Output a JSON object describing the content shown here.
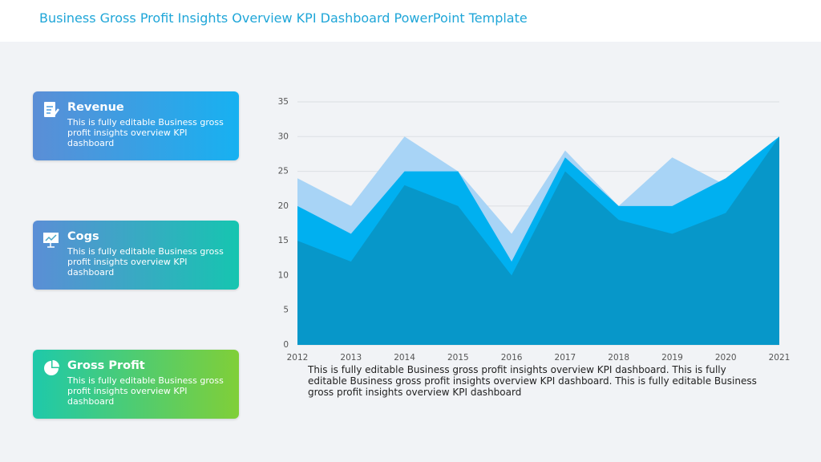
{
  "header": {
    "title": "Business Gross Profit Insights Overview KPI Dashboard PowerPoint Template"
  },
  "cards": [
    {
      "title": "Revenue",
      "text": "This is fully editable Business gross profit insights overview KPI dashboard"
    },
    {
      "title": "Cogs",
      "text": "This is fully editable Business gross profit insights overview KPI dashboard"
    },
    {
      "title": "Gross Profit",
      "text": "This is fully editable Business gross profit insights overview KPI dashboard"
    }
  ],
  "caption": "This is fully editable Business gross profit insights overview KPI dashboard. This is fully editable Business gross profit insights overview KPI dashboard. This is fully editable Business gross profit insights overview KPI dashboard",
  "chart_data": {
    "type": "area",
    "x": [
      2012,
      2013,
      2014,
      2015,
      2016,
      2017,
      2018,
      2019,
      2020,
      2021
    ],
    "xlim": [
      2012,
      2021
    ],
    "xticks": [
      2012,
      2013,
      2014,
      2015,
      2016,
      2017,
      2018,
      2019,
      2020,
      2021
    ],
    "ylim": [
      0,
      35
    ],
    "yticks": [
      0,
      5,
      10,
      15,
      20,
      25,
      30,
      35
    ],
    "grid": true,
    "series": [
      {
        "color": "#a8d4f6",
        "values": [
          24,
          20,
          30,
          25,
          16,
          28,
          20,
          27,
          23,
          30
        ]
      },
      {
        "color": "#00b0f0",
        "values": [
          20,
          16,
          25,
          25,
          12,
          27,
          20,
          20,
          24,
          30
        ]
      },
      {
        "color": "#0797c9",
        "values": [
          15,
          12,
          23,
          20,
          10,
          25,
          18,
          16,
          19,
          30
        ]
      }
    ]
  }
}
